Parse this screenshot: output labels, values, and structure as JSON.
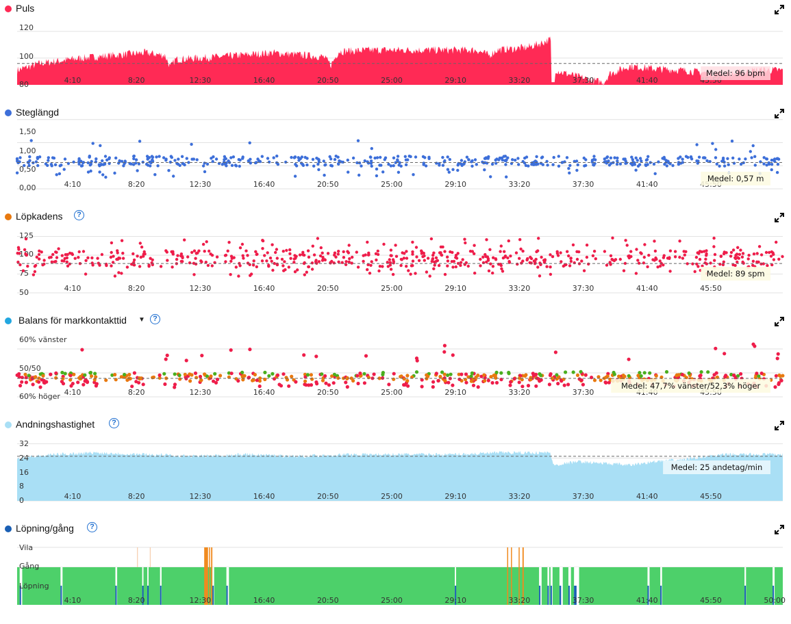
{
  "xtick_labels": [
    "4:10",
    "8:20",
    "12:30",
    "16:40",
    "20:50",
    "25:00",
    "29:10",
    "33:20",
    "37:30",
    "41:40",
    "45:50"
  ],
  "xtick_labels_last": [
    "4:10",
    "8:20",
    "12:30",
    "16:40",
    "20:50",
    "25:00",
    "29:10",
    "33:20",
    "37:30",
    "41:40",
    "45:50",
    "50:00"
  ],
  "panels": {
    "puls": {
      "title": "Puls",
      "color": "#ff2a55",
      "mean_label": "Medel: 96 bpm"
    },
    "steglangd": {
      "title": "Steglängd",
      "color": "#3d6fd9",
      "mean_label": "Medel: 0,57 m"
    },
    "lopkadens": {
      "title": "Löpkadens",
      "color": "#e8790f",
      "mean_label": "Medel: 89 spm"
    },
    "balans": {
      "title": "Balans för markkontakttid",
      "color": "#22a7e0",
      "mean_label": "Medel: 47,7% vänster/52,3% höger"
    },
    "andning": {
      "title": "Andningshastighet",
      "color": "#a9dff5",
      "mean_label": "Medel: 25 andetag/min"
    },
    "lopning": {
      "title": "Löpning/gång",
      "color": "#1a5fb4"
    }
  },
  "chart_data": [
    {
      "type": "area",
      "title": "Puls",
      "yticks": [
        "80",
        "100",
        "120"
      ],
      "ylim": [
        80,
        123
      ],
      "mean": 96,
      "x_range": [
        0,
        3000
      ],
      "series": [
        {
          "name": "Puls",
          "color": "#ff2a55",
          "keyframes": [
            [
              0,
              91
            ],
            [
              90,
              96
            ],
            [
              250,
              100
            ],
            [
              500,
              104
            ],
            [
              580,
              102
            ],
            [
              600,
              93
            ],
            [
              620,
              99
            ],
            [
              800,
              101
            ],
            [
              1000,
              104
            ],
            [
              1200,
              101
            ],
            [
              1230,
              95
            ],
            [
              1260,
              105
            ],
            [
              1400,
              106
            ],
            [
              1600,
              106
            ],
            [
              1800,
              106
            ],
            [
              1850,
              102
            ],
            [
              1880,
              106
            ],
            [
              2000,
              108
            ],
            [
              2050,
              111
            ],
            [
              2090,
              114
            ],
            [
              2100,
              92
            ],
            [
              2140,
              89
            ],
            [
              2200,
              86
            ],
            [
              2260,
              83
            ],
            [
              2300,
              82
            ],
            [
              2320,
              88
            ],
            [
              2400,
              94
            ],
            [
              2500,
              92
            ],
            [
              2600,
              91
            ],
            [
              2700,
              89
            ],
            [
              2800,
              88
            ],
            [
              2900,
              91
            ],
            [
              3000,
              91
            ]
          ]
        }
      ]
    },
    {
      "type": "scatter",
      "title": "Steglängd",
      "yticks": [
        "0,00",
        "0,50",
        "1,00",
        "1,50"
      ],
      "ylim": [
        0,
        1.6
      ],
      "mean": 0.57,
      "series": [
        {
          "name": "Steglängd",
          "color": "#3d6fd9",
          "center": 0.6,
          "spread": 0.1
        }
      ]
    },
    {
      "type": "scatter",
      "title": "Löpkadens",
      "yticks": [
        "50",
        "75",
        "100",
        "125"
      ],
      "ylim": [
        50,
        130
      ],
      "mean": 89,
      "series": [
        {
          "name": "Löpkadens",
          "color": "#ee1d4a",
          "center": 95,
          "spread": 10
        }
      ]
    },
    {
      "type": "scatter",
      "title": "Balans för markkontakttid",
      "yticks": [
        "60% höger",
        "50/50",
        "60% vänster"
      ],
      "ylim": [
        40,
        64
      ],
      "mean": 47.7,
      "legend_colors": [
        "#ee1d4a",
        "#e8790f",
        "#4aae1e"
      ]
    },
    {
      "type": "area",
      "title": "Andningshastighet",
      "yticks": [
        "0",
        "8",
        "16",
        "24",
        "32"
      ],
      "ylim": [
        0,
        33
      ],
      "mean": 25,
      "series": [
        {
          "name": "Andningshastighet",
          "color": "#a9dff5",
          "keyframes": [
            [
              0,
              24
            ],
            [
              150,
              26
            ],
            [
              300,
              27
            ],
            [
              500,
              26
            ],
            [
              700,
              25
            ],
            [
              900,
              26
            ],
            [
              1100,
              25
            ],
            [
              1300,
              26
            ],
            [
              1500,
              26
            ],
            [
              1700,
              26
            ],
            [
              1900,
              27
            ],
            [
              2050,
              27
            ],
            [
              2090,
              27
            ],
            [
              2100,
              20
            ],
            [
              2200,
              22
            ],
            [
              2400,
              20
            ],
            [
              2500,
              22
            ],
            [
              2600,
              23
            ],
            [
              2700,
              25
            ],
            [
              2800,
              26
            ],
            [
              2900,
              26
            ],
            [
              3000,
              26
            ]
          ]
        }
      ]
    },
    {
      "type": "bar",
      "title": "Löpning/gång",
      "yticks": [
        "Löpning",
        "Gång",
        "Vila"
      ],
      "x_range": [
        0,
        3000
      ],
      "run_color": "#4dd06a",
      "gap_color": "#1a5fb4",
      "walk_color": "#f08a1f",
      "vila_color": "#f6c9a6",
      "gaps": [
        [
          10,
          20
        ],
        [
          170,
          178
        ],
        [
          385,
          392
        ],
        [
          490,
          495
        ],
        [
          510,
          515
        ],
        [
          560,
          566
        ],
        [
          765,
          772
        ],
        [
          820,
          830
        ],
        [
          1715,
          1720
        ],
        [
          2045,
          2055
        ],
        [
          2078,
          2085
        ],
        [
          2090,
          2098
        ],
        [
          2125,
          2138
        ],
        [
          2160,
          2170
        ],
        [
          2182,
          2202
        ],
        [
          2470,
          2478
        ],
        [
          2520,
          2527
        ],
        [
          2850,
          2856
        ],
        [
          2960,
          2968
        ]
      ],
      "walks": [
        [
          733,
          748
        ],
        [
          752,
          756
        ],
        [
          760,
          765
        ],
        [
          1920,
          1924
        ],
        [
          1935,
          1939
        ],
        [
          1965,
          1969
        ],
        [
          1980,
          1985
        ]
      ],
      "vila": [
        [
          470,
          473
        ],
        [
          520,
          523
        ]
      ]
    }
  ]
}
